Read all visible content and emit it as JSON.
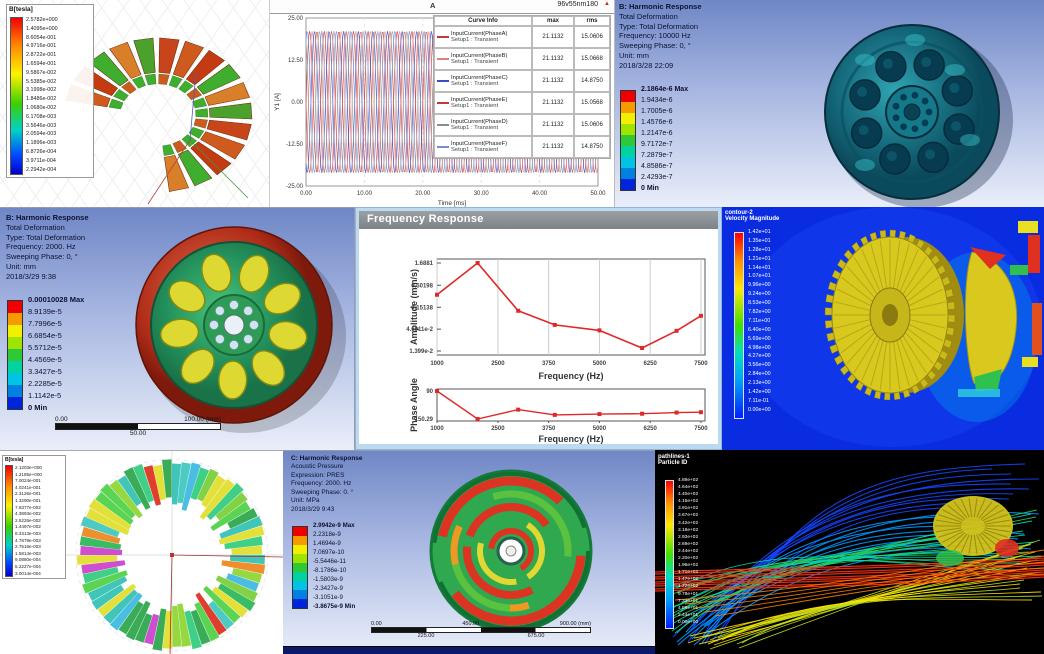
{
  "maxwell_coil": {
    "legend_title": "B[tesla]",
    "legend_values": [
      "2.5782e+000",
      "1.4095e+000",
      "8.6054e-001",
      "4.9716e-001",
      "2.8722e-001",
      "1.6594e-001",
      "9.5867e-002",
      "5.5385e-002",
      "3.1998e-002",
      "1.8486e-002",
      "1.0680e-002",
      "6.1708e-003",
      "3.5646e-003",
      "2.0594e-003",
      "1.1896e-003",
      "6.8726e-004",
      "3.9711e-004",
      "2.2942e-004"
    ]
  },
  "current_plot": {
    "corner_label": "A",
    "window_title": "96v55nm180",
    "maximize_icon": "▲",
    "ylabel": "Y1 [A]",
    "xlabel": "Time [ms]",
    "y_ticks": [
      "25.00",
      "12.50",
      "0.00",
      "-12.50",
      "-25.00"
    ],
    "x_ticks": [
      "0.00",
      "10.00",
      "20.00",
      "30.00",
      "40.00",
      "50.00"
    ],
    "table": {
      "headers": [
        "Curve Info",
        "max",
        "rms"
      ],
      "setup": "Setup1 : Transient",
      "rows": [
        {
          "name": "InputCurrent(PhaseA)",
          "max": "21.1132",
          "rms": "15.0606",
          "color": "#c23b3b"
        },
        {
          "name": "InputCurrent(PhaseB)",
          "max": "21.1132",
          "rms": "15.0668",
          "color": "#d98080"
        },
        {
          "name": "InputCurrent(PhaseC)",
          "max": "21.1132",
          "rms": "14.8750",
          "color": "#3b4fc2"
        },
        {
          "name": "InputCurrent(PhaseE)",
          "max": "21.1132",
          "rms": "15.0568",
          "color": "#c23b3b"
        },
        {
          "name": "InputCurrent(PhaseD)",
          "max": "21.1132",
          "rms": "15.0606",
          "color": "#8c8c8c"
        },
        {
          "name": "InputCurrent(PhaseF)",
          "max": "21.1132",
          "rms": "14.8750",
          "color": "#7b8cd0"
        }
      ]
    }
  },
  "harmonic_10000": {
    "title": "B: Harmonic Response",
    "lines": [
      "Total Deformation",
      "Type: Total Deformation",
      "Frequency: 10000 Hz",
      "Sweeping Phase: 0, °",
      "Unit: mm",
      "2018/3/28 22:09"
    ],
    "legend_labels": [
      "2.1864e-6 Max",
      "1.9434e-6",
      "1.7005e-6",
      "1.4576e-6",
      "1.2147e-6",
      "9.7172e-7",
      "7.2879e-7",
      "4.8586e-7",
      "2.4293e-7",
      "0 Min"
    ]
  },
  "harmonic_2000": {
    "title": "B: Harmonic Response",
    "lines": [
      "Total Deformation",
      "Type: Total Deformation",
      "Frequency: 2000. Hz",
      "Sweeping Phase: 0, °",
      "Unit: mm",
      "2018/3/29 9:38"
    ],
    "legend_labels": [
      "0.00010028 Max",
      "8.9139e-5",
      "7.7996e-5",
      "6.6854e-5",
      "5.5712e-5",
      "4.4569e-5",
      "3.3427e-5",
      "2.2285e-5",
      "1.1142e-5",
      "0 Min"
    ],
    "scale_bar": {
      "left": "0.00",
      "right": "100.00 (mm)",
      "mid": "50.00"
    }
  },
  "freq_window": {
    "title": "Frequency Response",
    "amplitude": {
      "ylabel": "Amplitude (mm/s)",
      "xlabel": "Frequency (Hz)",
      "y_ticks": [
        "1.6881",
        "0.50198",
        "0.15138",
        "4.6011e-2",
        "1.399e-2"
      ],
      "x_ticks": [
        "1000",
        "2500",
        "3750",
        "5000",
        "6250",
        "7500"
      ]
    },
    "phase": {
      "ylabel": "Phase Angle",
      "xlabel": "Frequency (Hz)",
      "y_ticks": [
        "90",
        "-150.29"
      ],
      "x_ticks": [
        "1000",
        "2500",
        "3750",
        "5000",
        "6250",
        "7500"
      ]
    }
  },
  "cfd_contour": {
    "legend_title_1": "contour-2",
    "legend_title_2": "Velocity Magnitude",
    "legend_values": [
      "1.42e+01",
      "1.35e+01",
      "1.28e+01",
      "1.21e+01",
      "1.14e+01",
      "1.07e+01",
      "9.96e+00",
      "9.24e+00",
      "8.53e+00",
      "7.82e+00",
      "7.11e+00",
      "6.40e+00",
      "5.69e+00",
      "4.98e+00",
      "4.27e+00",
      "3.56e+00",
      "2.84e+00",
      "2.13e+00",
      "1.42e+00",
      "7.11e-01",
      "0.00e+00"
    ]
  },
  "maxwell_ring": {
    "legend_title": "B[tesla]",
    "legend_values": [
      "2.1203e+000",
      "1.2185e+000",
      "7.0024e-001",
      "4.0241e-001",
      "2.3126e-001",
      "1.3290e-001",
      "7.6377e-002",
      "4.3893e-002",
      "2.5226e-002",
      "1.4497e-002",
      "8.3313e-003",
      "4.7879e-003",
      "2.7516e-003",
      "1.5814e-003",
      "9.0880e-004",
      "5.2227e-004",
      "3.0014e-004"
    ]
  },
  "acoustic": {
    "title": "C: Harmonic Response",
    "lines": [
      "Acoustic Pressure",
      "Expression: PRES",
      "Frequency: 2000. Hz",
      "Sweeping Phase: 0. °",
      "Unit: MPa",
      "2018/3/29 9:43"
    ],
    "legend_labels": [
      "2.9942e-9 Max",
      "2.2318e-9",
      "1.4694e-9",
      "7.0697e-10",
      "-5.5446e-11",
      "-8.1786e-10",
      "-1.5803e-9",
      "-2.3427e-9",
      "-3.1051e-9",
      "-3.8675e-9 Min"
    ],
    "scale_bar": {
      "left": "0.00",
      "mid": "450.00",
      "right": "900.00 (mm)",
      "q1": "225.00",
      "q3": "675.00"
    }
  },
  "pathlines": {
    "legend_title_1": "pathlines-1",
    "legend_title_2": "Particle ID",
    "legend_values": [
      "4.89e+02",
      "4.64e+02",
      "4.40e+02",
      "4.15e+02",
      "3.91e+02",
      "3.67e+02",
      "3.42e+02",
      "3.18e+02",
      "2.93e+02",
      "2.69e+02",
      "2.44e+02",
      "2.20e+02",
      "1.96e+02",
      "1.71e+02",
      "1.47e+02",
      "1.22e+02",
      "9.78e+01",
      "7.33e+01",
      "4.89e+01",
      "2.44e+01",
      "0.00e+00"
    ]
  },
  "colors": {
    "ansys_bands": [
      "#ee0000",
      "#f59b00",
      "#f2ef00",
      "#9fe400",
      "#2fc937",
      "#00d2a0",
      "#00c3e6",
      "#0080e0",
      "#0024dc"
    ],
    "curve_palette": [
      "#c23b3b",
      "#e09090",
      "#3b4fc2",
      "#d05858",
      "#9a9a9a",
      "#7b8cd0"
    ],
    "chart_line": "#e02828"
  },
  "chart_data": [
    {
      "id": "input_current_waveforms",
      "type": "line",
      "title": "96v55nm180",
      "xlabel": "Time [ms]",
      "ylabel": "Y1 [A]",
      "xlim": [
        0,
        50
      ],
      "ylim": [
        -25,
        25
      ],
      "x_ticks": [
        0,
        10,
        20,
        30,
        40,
        50
      ],
      "y_ticks": [
        25,
        12.5,
        0,
        -12.5,
        -25
      ],
      "grid": true,
      "legend_position": "right",
      "waveform": {
        "kind": "sine",
        "amplitude": 21.1132,
        "period_ms": 2.5,
        "phases_deg": [
          0,
          -60,
          -120,
          -180,
          -240,
          -300
        ]
      },
      "series": [
        {
          "name": "InputCurrent(PhaseA)",
          "max": 21.1132,
          "rms": 15.0606
        },
        {
          "name": "InputCurrent(PhaseB)",
          "max": 21.1132,
          "rms": 15.0668
        },
        {
          "name": "InputCurrent(PhaseC)",
          "max": 21.1132,
          "rms": 14.875
        },
        {
          "name": "InputCurrent(PhaseE)",
          "max": 21.1132,
          "rms": 15.0568
        },
        {
          "name": "InputCurrent(PhaseD)",
          "max": 21.1132,
          "rms": 15.0606
        },
        {
          "name": "InputCurrent(PhaseF)",
          "max": 21.1132,
          "rms": 14.875
        }
      ]
    },
    {
      "id": "frequency_response_amplitude",
      "type": "line",
      "title": "Frequency Response",
      "xlabel": "Frequency (Hz)",
      "ylabel": "Amplitude (mm/s)",
      "yscale": "log",
      "ylim": [
        0.01399,
        1.6881
      ],
      "x_ticks": [
        1000,
        2500,
        3750,
        5000,
        6250,
        7500
      ],
      "y_ticks": [
        1.6881,
        0.50198,
        0.15138,
        0.046011,
        0.01399
      ],
      "grid": true,
      "x": [
        1000,
        2000,
        3000,
        3900,
        5000,
        6050,
        6900,
        7500
      ],
      "y": [
        0.3,
        1.6881,
        0.125,
        0.058,
        0.043,
        0.0165,
        0.042,
        0.095
      ],
      "line_color": "#e02828"
    },
    {
      "id": "frequency_response_phase",
      "type": "line",
      "xlabel": "Frequency (Hz)",
      "ylabel": "Phase Angle",
      "ylim": [
        -150.29,
        90
      ],
      "x_ticks": [
        1000,
        2500,
        3750,
        5000,
        6250,
        7500
      ],
      "y_ticks": [
        90,
        -150.29
      ],
      "x": [
        1000,
        2000,
        3000,
        3900,
        5000,
        6050,
        6900,
        7500
      ],
      "y": [
        90,
        -150.29,
        -70,
        -115,
        -108,
        -105,
        -95,
        -92
      ],
      "line_color": "#e02828"
    }
  ]
}
